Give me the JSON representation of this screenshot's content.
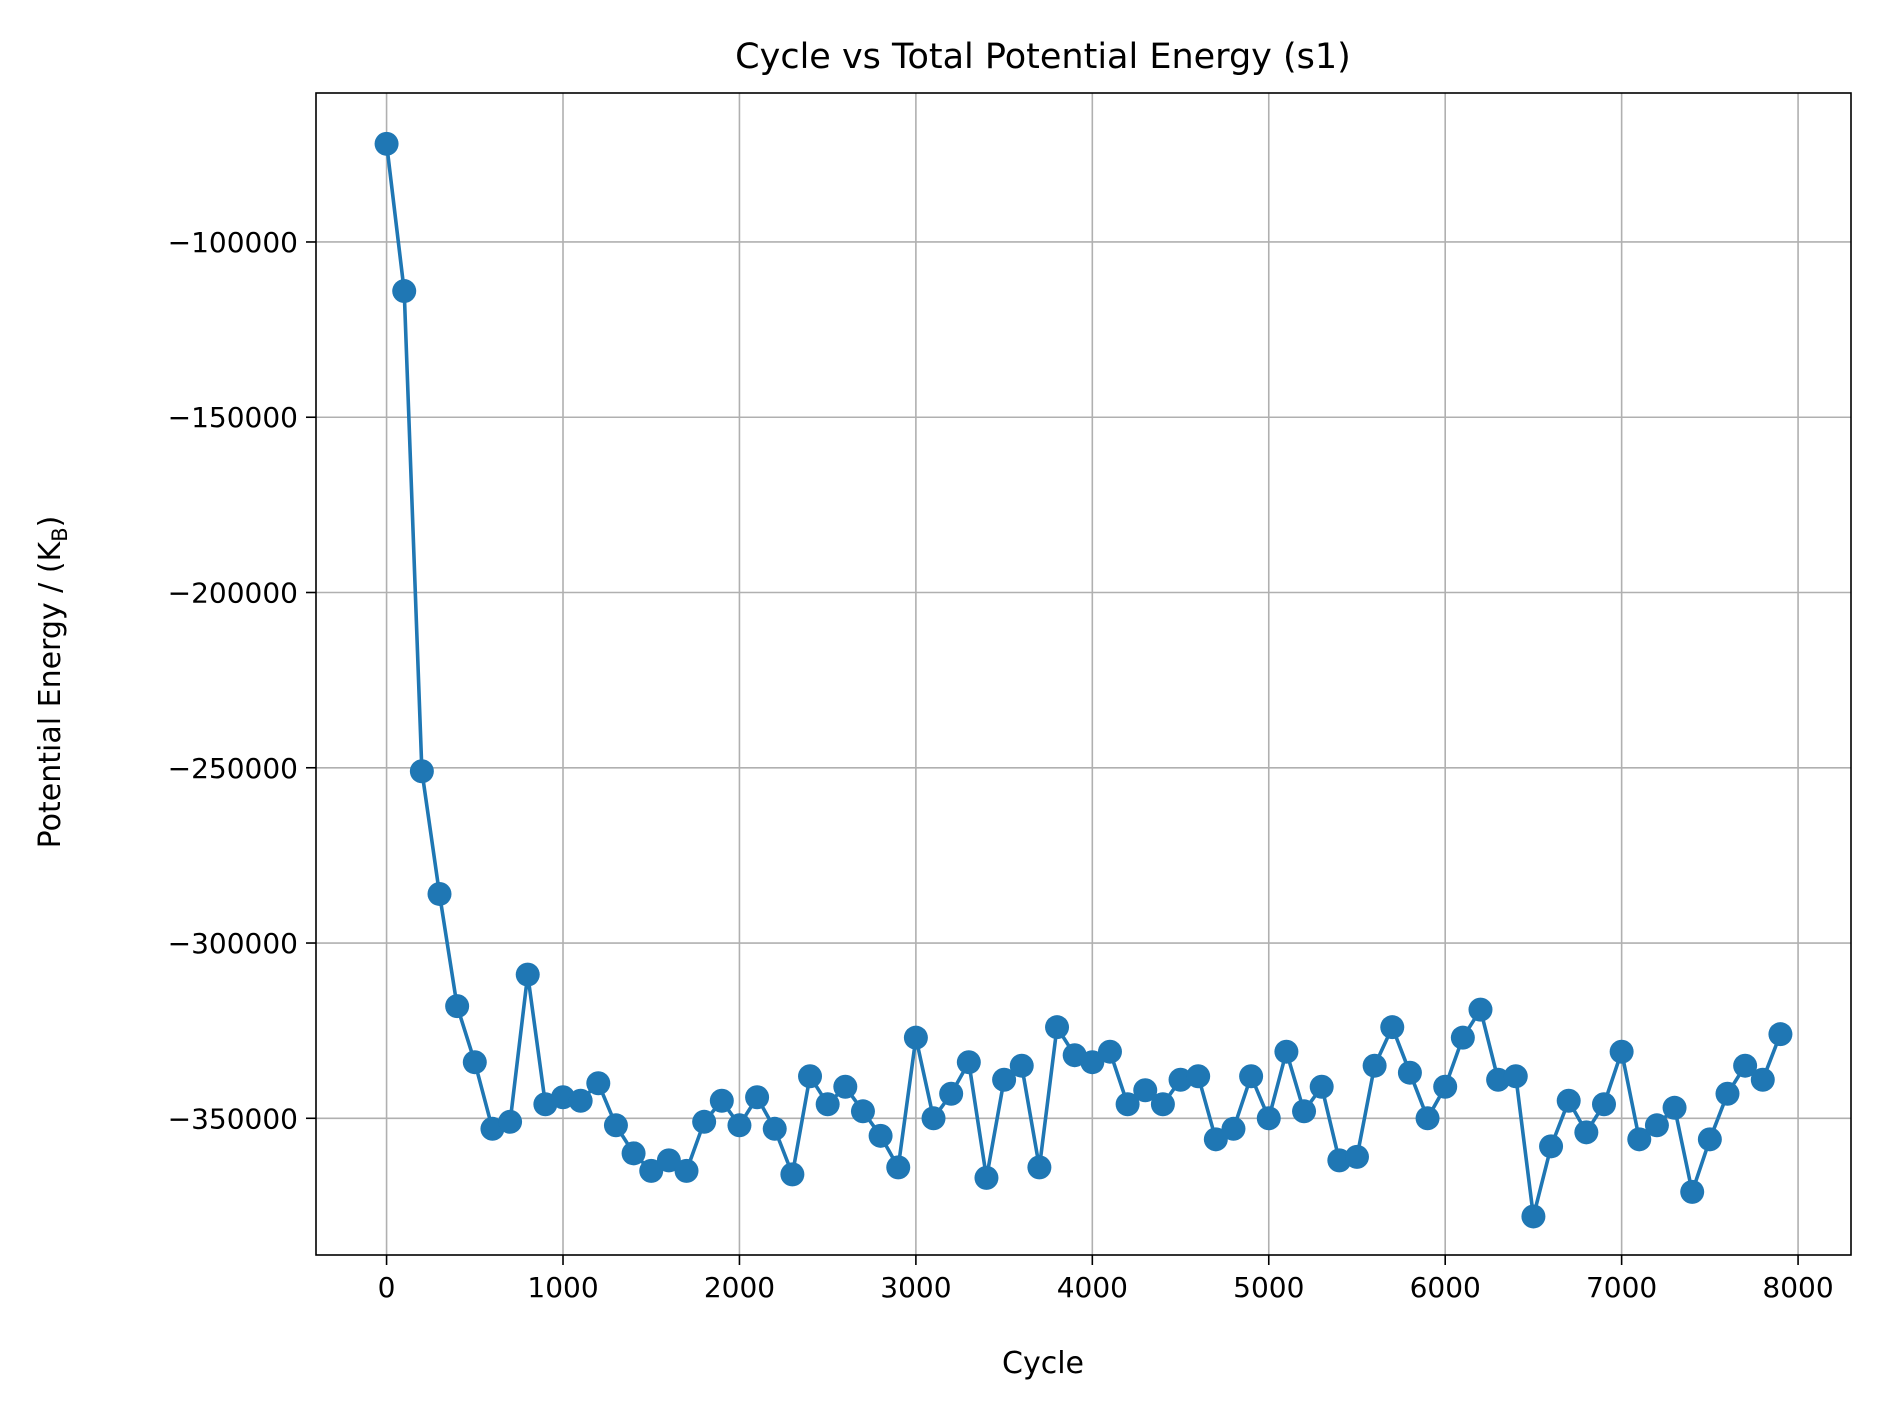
{
  "chart_data": {
    "type": "line",
    "title": "Cycle vs Total Potential Energy (s1)",
    "xlabel": "Cycle",
    "ylabel": {
      "main": "Potential Energy / (K",
      "subscript": "B",
      "suffix": ")"
    },
    "xlim": [
      -400,
      8300
    ],
    "ylim": [
      -389000,
      -57500
    ],
    "x_ticks": [
      0,
      1000,
      2000,
      3000,
      4000,
      5000,
      6000,
      7000,
      8000
    ],
    "x_tick_labels": [
      "0",
      "1000",
      "2000",
      "3000",
      "4000",
      "5000",
      "6000",
      "7000",
      "8000"
    ],
    "y_ticks": [
      -100000,
      -150000,
      -200000,
      -250000,
      -300000,
      -350000
    ],
    "y_tick_labels": [
      "−100000",
      "−150000",
      "−200000",
      "−250000",
      "−300000",
      "−350000"
    ],
    "grid": true,
    "legend": "none",
    "series": [
      {
        "color": "#1f77b4",
        "marker": "circle",
        "x": [
          0,
          100,
          200,
          300,
          400,
          500,
          600,
          700,
          800,
          900,
          1000,
          1100,
          1200,
          1300,
          1400,
          1500,
          1600,
          1700,
          1800,
          1900,
          2000,
          2100,
          2200,
          2300,
          2400,
          2500,
          2600,
          2700,
          2800,
          2900,
          3000,
          3100,
          3200,
          3300,
          3400,
          3500,
          3600,
          3700,
          3800,
          3900,
          4000,
          4100,
          4200,
          4300,
          4400,
          4500,
          4600,
          4700,
          4800,
          4900,
          5000,
          5100,
          5200,
          5300,
          5400,
          5500,
          5600,
          5700,
          5800,
          5900,
          6000,
          6100,
          6200,
          6300,
          6400,
          6500,
          6600,
          6700,
          6800,
          6900,
          7000,
          7100,
          7200,
          7300,
          7400,
          7500,
          7600,
          7700,
          7800,
          7900
        ],
        "y": [
          -72000,
          -114000,
          -251000,
          -286000,
          -318000,
          -334000,
          -353000,
          -351000,
          -309000,
          -346000,
          -344000,
          -345000,
          -340000,
          -352000,
          -360000,
          -365000,
          -362000,
          -365000,
          -351000,
          -345000,
          -352000,
          -344000,
          -353000,
          -366000,
          -338000,
          -346000,
          -341000,
          -348000,
          -355000,
          -364000,
          -327000,
          -350000,
          -343000,
          -334000,
          -367000,
          -339000,
          -335000,
          -364000,
          -324000,
          -332000,
          -334000,
          -331000,
          -346000,
          -342000,
          -346000,
          -339000,
          -338000,
          -356000,
          -353000,
          -338000,
          -350000,
          -331000,
          -348000,
          -341000,
          -362000,
          -361000,
          -335000,
          -324000,
          -337000,
          -350000,
          -341000,
          -327000,
          -319000,
          -339000,
          -338000,
          -378000,
          -358000,
          -345000,
          -354000,
          -346000,
          -331000,
          -356000,
          -352000,
          -347000,
          -371000,
          -356000,
          -343000,
          -335000,
          -339000,
          -326000
        ]
      }
    ]
  }
}
